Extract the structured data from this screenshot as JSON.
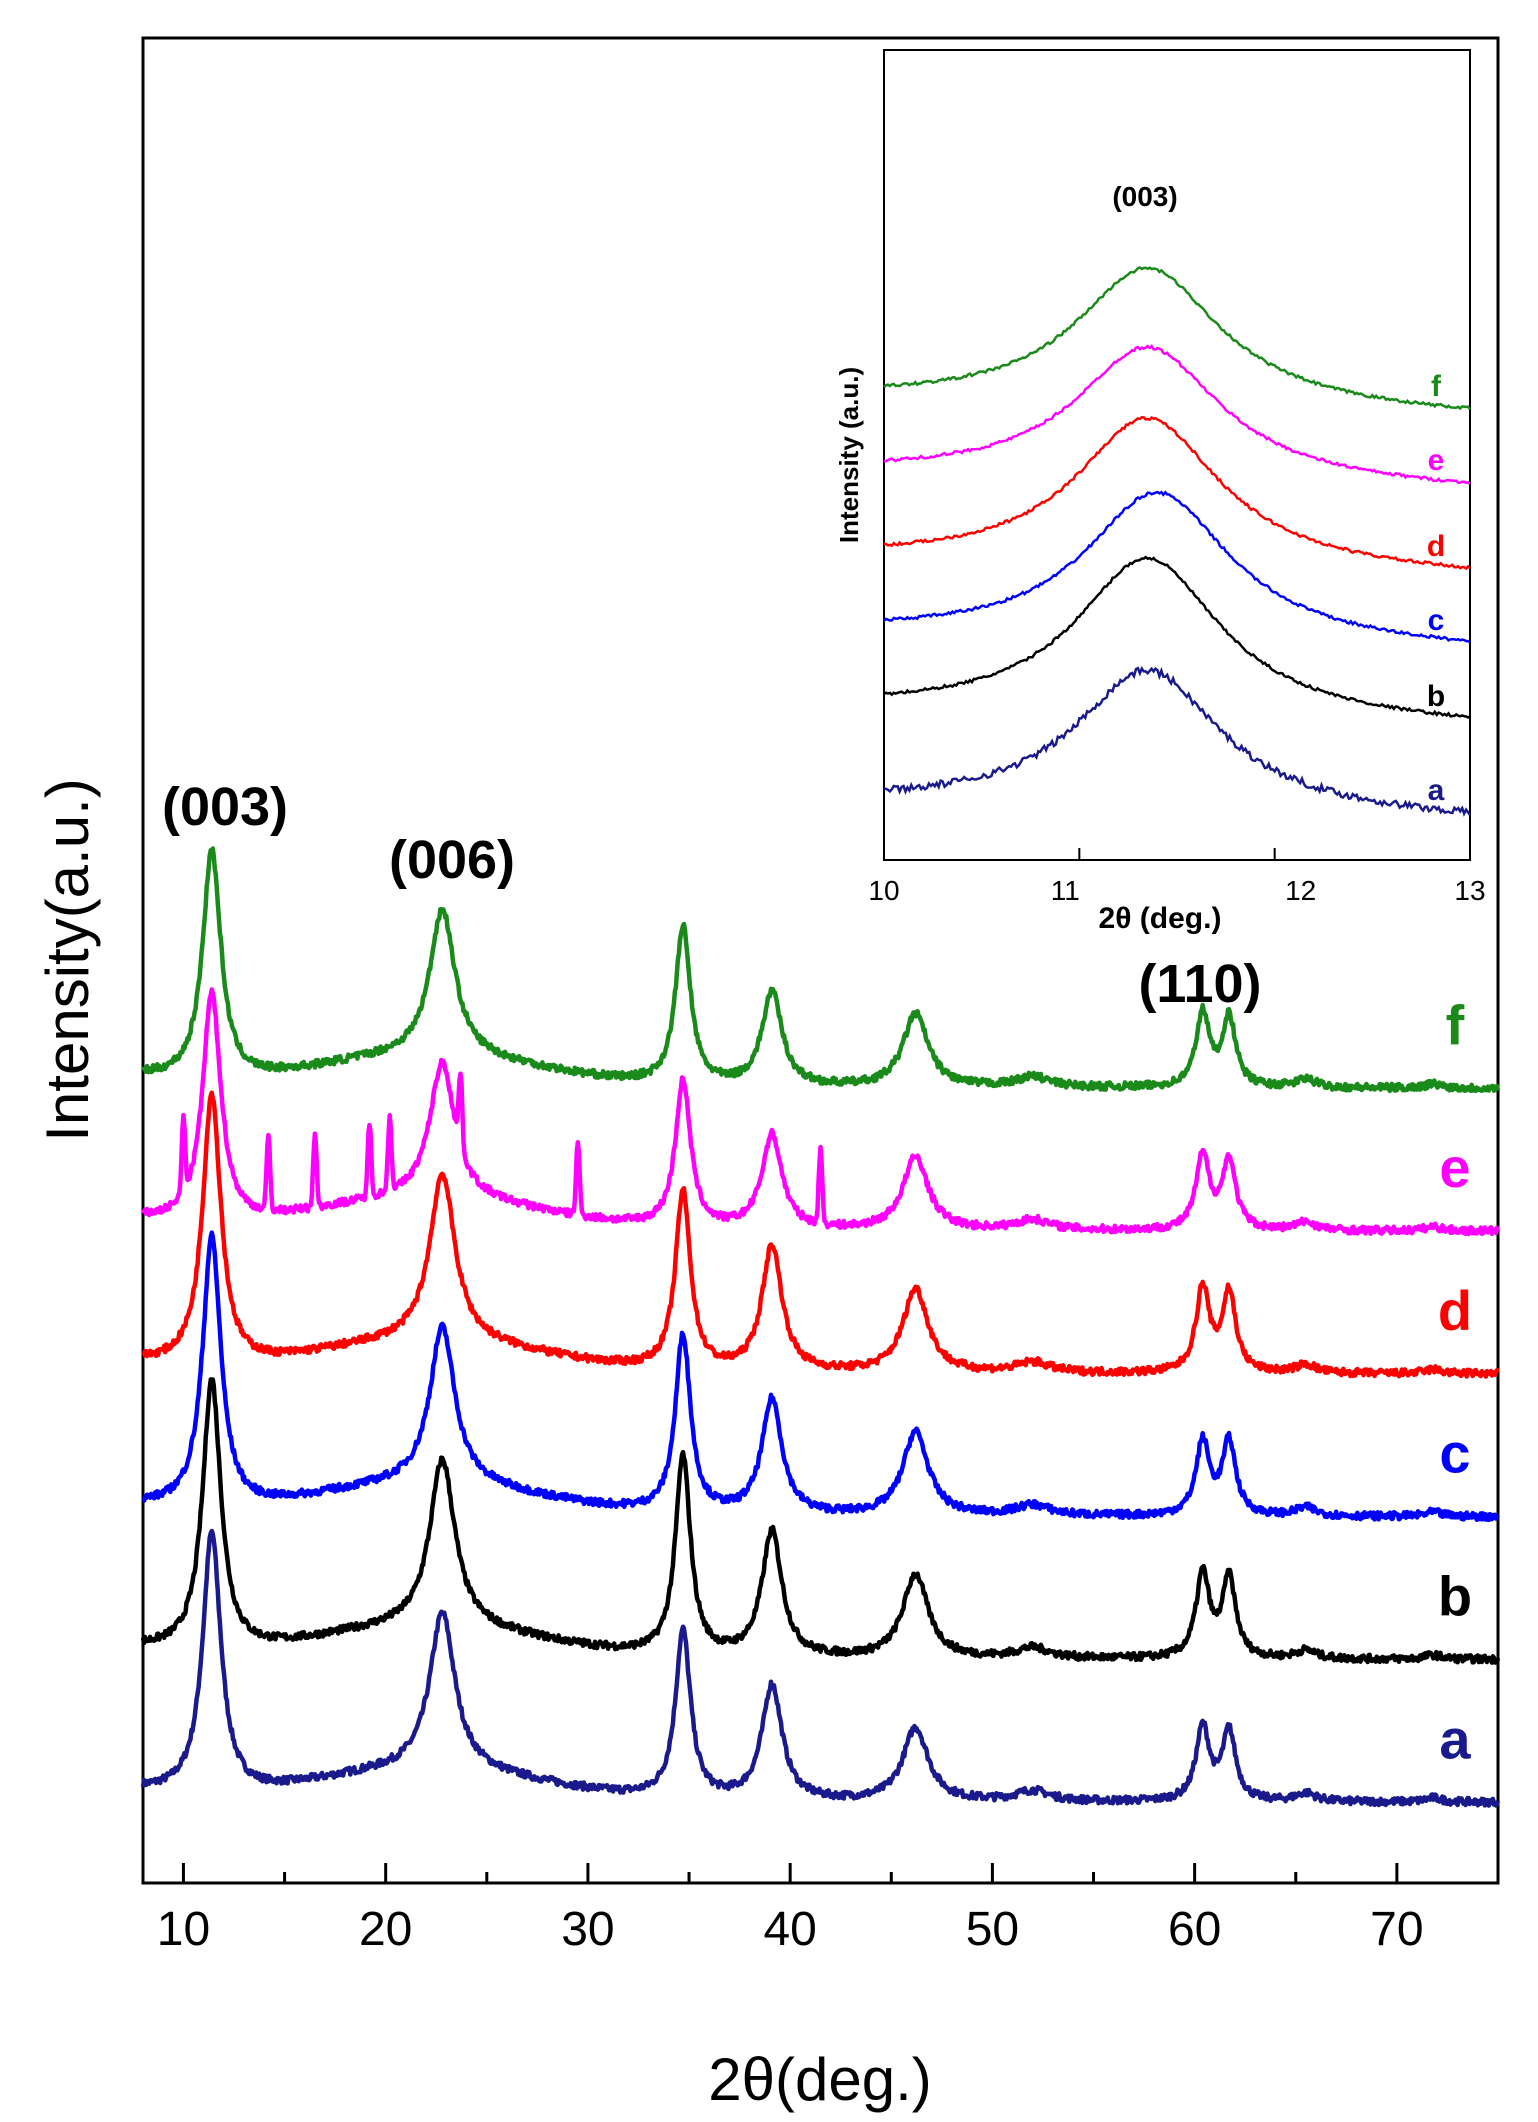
{
  "chart_data": [
    {
      "type": "line",
      "title": "",
      "xlabel": "2θ(deg.)",
      "ylabel": "Intensity(a.u.)",
      "xlim": [
        8,
        75
      ],
      "xticks": [
        10,
        20,
        30,
        40,
        50,
        60,
        70
      ],
      "xtick_labels": [
        "10",
        "20",
        "30",
        "40",
        "50",
        "60",
        "70"
      ],
      "grid": false,
      "legend": "series labels at right end of each curve",
      "peak_labels": [
        "(003)",
        "(006)",
        "(110)"
      ],
      "peaks_2theta": [
        11.4,
        22.8,
        34.7,
        39.1,
        46.2,
        60.4,
        61.7
      ],
      "series": [
        {
          "name": "a",
          "color": "#1a1a8c",
          "baseline_offset": 0,
          "peak_heights": [
            12.5,
            7.5,
            8,
            5.5,
            3.5,
            3.5,
            3.3
          ]
        },
        {
          "name": "b",
          "color": "#000000",
          "baseline_offset": 1,
          "peak_heights": [
            13,
            8,
            9.5,
            6,
            4,
            4,
            3.8
          ]
        },
        {
          "name": "c",
          "color": "#0000ff",
          "baseline_offset": 2,
          "peak_heights": [
            13,
            7.5,
            8.5,
            5.5,
            4,
            3.5,
            3.5
          ]
        },
        {
          "name": "d",
          "color": "#ff0000",
          "baseline_offset": 3,
          "peak_heights": [
            13,
            8,
            8.5,
            6,
            4,
            4,
            3.8
          ]
        },
        {
          "name": "e",
          "color": "#ff00ff",
          "baseline_offset": 4,
          "peak_heights": [
            11,
            6.5,
            7,
            4.5,
            3.5,
            3.5,
            3.3
          ]
        },
        {
          "name": "f",
          "color": "#1a8a1a",
          "baseline_offset": 5,
          "peak_heights": [
            11,
            7,
            7.5,
            4.5,
            3.5,
            3.5,
            3.3
          ]
        }
      ]
    },
    {
      "type": "line",
      "title": "",
      "xlabel": "2θ (deg.)",
      "ylabel": "Intensity (a.u.)",
      "xlim": [
        10,
        13
      ],
      "xticks": [
        10,
        11,
        12,
        13
      ],
      "xtick_labels": [
        "10",
        "11",
        "12",
        "13"
      ],
      "grid": false,
      "peak_labels": [
        "(003)"
      ],
      "peak_center": 11.35,
      "series": [
        {
          "name": "a",
          "color": "#1a1a8c"
        },
        {
          "name": "b",
          "color": "#000000"
        },
        {
          "name": "c",
          "color": "#0000ff"
        },
        {
          "name": "d",
          "color": "#ff0000"
        },
        {
          "name": "e",
          "color": "#ff00ff"
        },
        {
          "name": "f",
          "color": "#1a8a1a"
        }
      ]
    }
  ]
}
